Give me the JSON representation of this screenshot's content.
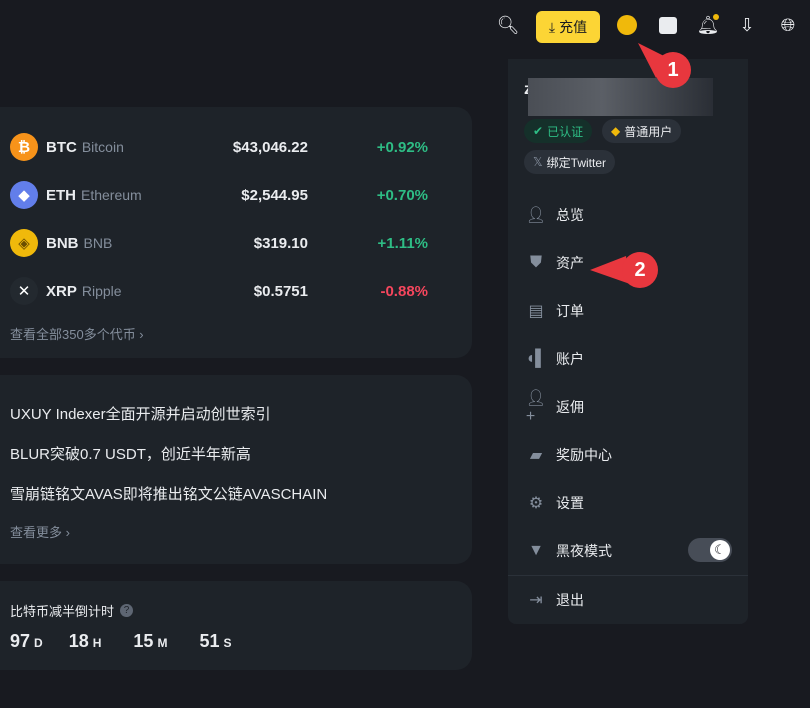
{
  "header": {
    "deposit_label": "充值",
    "icons": [
      "search-icon",
      "download-icon",
      "user-icon",
      "wallet-icon",
      "bell-icon",
      "app-download-icon",
      "globe-icon"
    ],
    "accent": "#fcd535"
  },
  "markets": {
    "coins": [
      {
        "symbol": "BTC",
        "name": "Bitcoin",
        "price": "$43,046.22",
        "change": "+0.92%",
        "dir": "up",
        "color": "#f7931a",
        "glyph": "₿"
      },
      {
        "symbol": "ETH",
        "name": "Ethereum",
        "price": "$2,544.95",
        "change": "+0.70%",
        "dir": "up",
        "color": "#627eea",
        "glyph": "◆"
      },
      {
        "symbol": "BNB",
        "name": "BNB",
        "price": "$319.10",
        "change": "+1.11%",
        "dir": "up",
        "color": "#f0b90b",
        "glyph": "◈"
      },
      {
        "symbol": "XRP",
        "name": "Ripple",
        "price": "$0.5751",
        "change": "-0.88%",
        "dir": "down",
        "color": "#23292f",
        "glyph": "✕"
      }
    ],
    "view_all": "查看全部350多个代币 ›"
  },
  "news": {
    "items": [
      "UXUY Indexer全面开源并启动创世索引",
      "BLUR突破0.7 USDT，创近半年新高",
      "雪崩链铭文AVAS即将推出铭文公链AVASCHAIN"
    ],
    "more": "查看更多 ›"
  },
  "halving": {
    "title": "比特币减半倒计时",
    "days": "97",
    "days_unit": "D",
    "hours": "18",
    "hours_unit": "H",
    "minutes": "15",
    "minutes_unit": "M",
    "seconds": "51",
    "seconds_unit": "S"
  },
  "user_menu": {
    "username_initial": "z",
    "verified": "已认证",
    "tier": "普通用户",
    "twitter": "绑定Twitter",
    "items": [
      {
        "label": "总览",
        "icon": "user-icon"
      },
      {
        "label": "资产",
        "icon": "shield-icon"
      },
      {
        "label": "订单",
        "icon": "orders-icon"
      },
      {
        "label": "账户",
        "icon": "account-icon"
      },
      {
        "label": "返佣",
        "icon": "add-user-icon"
      },
      {
        "label": "奖励中心",
        "icon": "ticket-icon"
      },
      {
        "label": "设置",
        "icon": "gear-icon"
      },
      {
        "label": "黑夜模式",
        "icon": "theme-icon"
      }
    ],
    "dark_mode": true,
    "logout": "退出"
  },
  "callouts": [
    "1",
    "2"
  ]
}
